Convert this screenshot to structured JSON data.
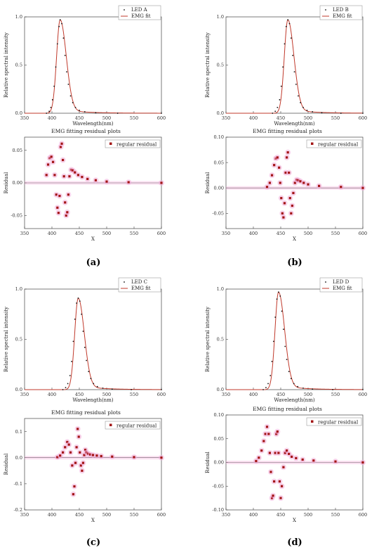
{
  "panels": [
    {
      "caption": "(a)",
      "spectrum": {
        "type": "scatter",
        "ylabel": "Relative spectral intensity",
        "xlabel": "Wavelength(nm)",
        "xlim": [
          350,
          600
        ],
        "ylim": [
          0,
          1
        ],
        "xticks": [
          "350",
          "400",
          "450",
          "500",
          "550",
          "600"
        ],
        "yticks": [
          "0.0",
          "0.5",
          "1.0"
        ],
        "legend": [
          "LED A",
          "EMG fit"
        ],
        "legend_position": "top-right",
        "peak": 415,
        "x": [
          390,
          395,
          398,
          401,
          404,
          407,
          410,
          413,
          415,
          418,
          421,
          424,
          427,
          430,
          434,
          438,
          443,
          450,
          460,
          480,
          520,
          600
        ],
        "y": [
          0.0,
          0.02,
          0.06,
          0.14,
          0.28,
          0.48,
          0.72,
          0.9,
          0.97,
          0.93,
          0.78,
          0.6,
          0.43,
          0.3,
          0.18,
          0.11,
          0.06,
          0.03,
          0.015,
          0.005,
          0.0,
          0.0
        ]
      },
      "residual": {
        "type": "scatter",
        "title": "EMG fitting residual plots",
        "ylabel": "Residual",
        "xlabel": "X",
        "xlim": [
          350,
          600
        ],
        "ylim": [
          -0.07,
          0.07
        ],
        "xticks": [
          "350",
          "400",
          "450",
          "500",
          "550",
          "600"
        ],
        "yticks": [
          "-0.05",
          "0.00",
          "0.05"
        ],
        "legend": "regular residual",
        "legend_position": "top-right",
        "x": [
          390,
          393,
          396,
          399,
          402,
          405,
          408,
          410,
          412,
          414,
          416,
          418,
          420,
          422,
          424,
          426,
          428,
          430,
          432,
          435,
          438,
          442,
          448,
          455,
          465,
          480,
          500,
          540,
          600
        ],
        "y": [
          0.012,
          0.028,
          0.038,
          0.04,
          0.032,
          0.012,
          -0.018,
          -0.038,
          -0.046,
          -0.02,
          0.055,
          0.06,
          0.035,
          0.01,
          -0.03,
          -0.05,
          -0.045,
          -0.018,
          0.01,
          0.02,
          0.019,
          0.016,
          0.012,
          0.009,
          0.006,
          0.004,
          0.002,
          0.001,
          0.0
        ]
      }
    },
    {
      "caption": "(b)",
      "spectrum": {
        "type": "scatter",
        "ylabel": "Relative spectral intensity",
        "xlabel": "Wavelength(nm)",
        "xlim": [
          350,
          600
        ],
        "ylim": [
          0,
          1
        ],
        "xticks": [
          "350",
          "400",
          "450",
          "500",
          "550",
          "600"
        ],
        "yticks": [
          "0.0",
          "0.5",
          "1.0"
        ],
        "legend": [
          "LED B",
          "EMG fit"
        ],
        "legend_position": "top-right",
        "peak": 463,
        "x": [
          435,
          440,
          444,
          448,
          451,
          454,
          457,
          460,
          463,
          466,
          469,
          472,
          475,
          478,
          482,
          486,
          491,
          498,
          508,
          525,
          560,
          600
        ],
        "y": [
          0.0,
          0.02,
          0.06,
          0.14,
          0.28,
          0.48,
          0.72,
          0.9,
          0.97,
          0.93,
          0.78,
          0.6,
          0.43,
          0.3,
          0.18,
          0.11,
          0.06,
          0.03,
          0.015,
          0.005,
          0.0,
          0.0
        ]
      },
      "residual": {
        "type": "scatter",
        "title": "EMG fitting residual plots",
        "ylabel": "Residual",
        "xlabel": "X",
        "xlim": [
          350,
          600
        ],
        "ylim": [
          -0.08,
          0.1
        ],
        "xticks": [
          "350",
          "400",
          "450",
          "500",
          "550",
          "600"
        ],
        "yticks": [
          "-0.05",
          "0.00",
          "0.05",
          "0.10"
        ],
        "legend": "regular residual",
        "legend_position": "top-right",
        "x": [
          425,
          430,
          434,
          438,
          441,
          444,
          447,
          449,
          451,
          453,
          455,
          457,
          459,
          461,
          463,
          465,
          467,
          469,
          471,
          473,
          476,
          479,
          482,
          486,
          492,
          500,
          520,
          560,
          600
        ],
        "y": [
          0.002,
          0.01,
          0.025,
          0.045,
          0.058,
          0.06,
          0.04,
          0.01,
          -0.02,
          -0.05,
          -0.058,
          -0.03,
          0.03,
          0.06,
          0.07,
          0.03,
          -0.02,
          -0.05,
          -0.035,
          -0.01,
          0.01,
          0.016,
          0.015,
          0.013,
          0.01,
          0.007,
          0.004,
          0.002,
          0.0
        ]
      }
    },
    {
      "caption": "(c)",
      "spectrum": {
        "type": "scatter",
        "ylabel": "Relative spectral intensity",
        "xlabel": "Wavelength(nm)",
        "xlim": [
          350,
          600
        ],
        "ylim": [
          0,
          1
        ],
        "xticks": [
          "350",
          "400",
          "450",
          "500",
          "550",
          "600"
        ],
        "yticks": [
          "0.0",
          "0.5",
          "1.0"
        ],
        "legend": [
          "LED C",
          "EMG fit"
        ],
        "legend_position": "top-right",
        "peak": 448,
        "x": [
          420,
          425,
          429,
          433,
          436,
          439,
          442,
          445,
          448,
          451,
          454,
          457,
          460,
          463,
          467,
          471,
          476,
          483,
          493,
          510,
          545,
          600
        ],
        "y": [
          0.0,
          0.02,
          0.06,
          0.14,
          0.28,
          0.48,
          0.7,
          0.86,
          0.91,
          0.88,
          0.75,
          0.58,
          0.42,
          0.29,
          0.18,
          0.11,
          0.06,
          0.03,
          0.015,
          0.005,
          0.0,
          0.0
        ]
      },
      "residual": {
        "type": "scatter",
        "title": "EMG fitting residual plots",
        "ylabel": "Residual",
        "xlabel": "X",
        "xlim": [
          350,
          600
        ],
        "ylim": [
          -0.2,
          0.15
        ],
        "xticks": [
          "350",
          "400",
          "450",
          "500",
          "550",
          "600"
        ],
        "yticks": [
          "-0.2",
          "-0.1",
          "0.0",
          "0.1"
        ],
        "legend": "regular residual",
        "legend_position": "top-right",
        "x": [
          410,
          415,
          420,
          424,
          428,
          431,
          434,
          437,
          439,
          441,
          443,
          445,
          447,
          449,
          451,
          453,
          455,
          457,
          459,
          461,
          463,
          466,
          470,
          475,
          482,
          490,
          510,
          550,
          600
        ],
        "y": [
          0.002,
          0.008,
          0.02,
          0.04,
          0.06,
          0.05,
          0.02,
          -0.03,
          -0.14,
          -0.11,
          -0.02,
          0.04,
          0.11,
          0.08,
          0.02,
          -0.03,
          -0.05,
          -0.02,
          0.01,
          0.03,
          0.02,
          0.015,
          0.012,
          0.01,
          0.008,
          0.006,
          0.004,
          0.002,
          0.0
        ]
      }
    },
    {
      "caption": "(d)",
      "spectrum": {
        "type": "scatter",
        "ylabel": "Relative spectral intensity",
        "xlabel": "Wavelength(nm)",
        "xlim": [
          350,
          600
        ],
        "ylim": [
          0,
          1
        ],
        "xticks": [
          "350",
          "400",
          "450",
          "500",
          "550",
          "600"
        ],
        "yticks": [
          "0.0",
          "0.5",
          "1.0"
        ],
        "legend": [
          "LED D",
          "EMG fit"
        ],
        "legend_position": "top-right",
        "peak": 446,
        "x": [
          418,
          423,
          427,
          431,
          434,
          437,
          440,
          443,
          446,
          449,
          452,
          455,
          458,
          461,
          465,
          469,
          474,
          481,
          491,
          508,
          545,
          600
        ],
        "y": [
          0.0,
          0.02,
          0.06,
          0.14,
          0.28,
          0.48,
          0.72,
          0.9,
          0.97,
          0.93,
          0.78,
          0.6,
          0.43,
          0.3,
          0.18,
          0.11,
          0.06,
          0.03,
          0.015,
          0.005,
          0.0,
          0.0
        ]
      },
      "residual": {
        "type": "scatter",
        "title": "EMG fitting residual plots",
        "ylabel": "Residual",
        "xlabel": "X",
        "xlim": [
          350,
          600
        ],
        "ylim": [
          -0.1,
          0.1
        ],
        "xticks": [
          "350",
          "400",
          "450",
          "500",
          "550",
          "600"
        ],
        "yticks": [
          "-0.10",
          "-0.05",
          "0.00",
          "0.05",
          "0.10"
        ],
        "legend": "regular residual",
        "legend_position": "top-right",
        "x": [
          405,
          410,
          415,
          419,
          422,
          425,
          428,
          430,
          432,
          434,
          436,
          438,
          440,
          442,
          444,
          446,
          448,
          450,
          452,
          455,
          458,
          461,
          465,
          470,
          478,
          490,
          510,
          550,
          600
        ],
        "y": [
          0.003,
          0.01,
          0.025,
          0.045,
          0.06,
          0.075,
          0.06,
          0.02,
          -0.02,
          -0.075,
          -0.07,
          -0.04,
          0.02,
          0.06,
          0.065,
          0.02,
          -0.04,
          -0.075,
          -0.05,
          -0.01,
          0.02,
          0.025,
          0.018,
          0.012,
          0.009,
          0.006,
          0.004,
          0.002,
          0.0
        ]
      }
    }
  ],
  "colors": {
    "fit_line": "#c0392b",
    "spectrum_marker": "#111111",
    "residual_marker": "#a31515",
    "residual_halo": "#f2a8d8",
    "axis": "#444444"
  }
}
